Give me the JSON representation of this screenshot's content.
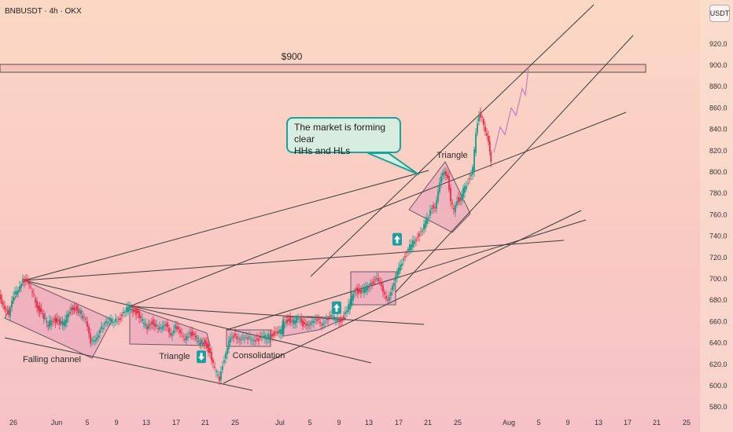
{
  "header": {
    "symbol_line": "BNBUSDT · 4h · OKX"
  },
  "currency": "USDT",
  "callout": {
    "line1": "The market is forming clear",
    "line2": "HHs and HLs"
  },
  "chart_data": {
    "type": "candlestick",
    "title": "BNBUSDT · 4h · OKX",
    "y_axis": {
      "ticks": [
        580,
        600,
        620,
        640,
        660,
        680,
        700,
        720,
        740,
        760,
        780,
        800,
        820,
        840,
        860,
        880,
        900,
        920
      ],
      "tick_labels": [
        "580.0",
        "600.0",
        "620.0",
        "640.0",
        "660.0",
        "680.0",
        "700.0",
        "720.0",
        "740.0",
        "760.0",
        "780.0",
        "800.0",
        "820.0",
        "840.0",
        "860.0",
        "880.0",
        "900.0",
        "920.0"
      ],
      "range": [
        573,
        943
      ],
      "position": "right"
    },
    "x_axis": {
      "tick_labels": [
        "26",
        "Jun",
        "5",
        "9",
        "13",
        "17",
        "21",
        "25",
        "Jul",
        "5",
        "9",
        "13",
        "17",
        "21",
        "25",
        "Aug",
        "5",
        "9",
        "13",
        "17",
        "21",
        "25"
      ],
      "bold_labels": [
        "Jun",
        "Jul",
        "Aug"
      ]
    },
    "price_series": [
      [
        0,
        683
      ],
      [
        5,
        677
      ],
      [
        12,
        665
      ],
      [
        18,
        683
      ],
      [
        24,
        692
      ],
      [
        30,
        700
      ],
      [
        36,
        695
      ],
      [
        42,
        688
      ],
      [
        48,
        675
      ],
      [
        55,
        665
      ],
      [
        62,
        657
      ],
      [
        68,
        662
      ],
      [
        75,
        660
      ],
      [
        82,
        658
      ],
      [
        90,
        670
      ],
      [
        97,
        673
      ],
      [
        104,
        668
      ],
      [
        110,
        660
      ],
      [
        116,
        640
      ],
      [
        122,
        645
      ],
      [
        130,
        653
      ],
      [
        138,
        660
      ],
      [
        146,
        662
      ],
      [
        152,
        663
      ],
      [
        158,
        667
      ],
      [
        164,
        673
      ],
      [
        170,
        671
      ],
      [
        176,
        668
      ],
      [
        182,
        660
      ],
      [
        188,
        653
      ],
      [
        194,
        660
      ],
      [
        200,
        656
      ],
      [
        206,
        652
      ],
      [
        212,
        657
      ],
      [
        218,
        649
      ],
      [
        224,
        655
      ],
      [
        230,
        648
      ],
      [
        236,
        645
      ],
      [
        242,
        650
      ],
      [
        248,
        645
      ],
      [
        255,
        641
      ],
      [
        262,
        640
      ],
      [
        268,
        630
      ],
      [
        274,
        615
      ],
      [
        280,
        605
      ],
      [
        284,
        620
      ],
      [
        288,
        632
      ],
      [
        292,
        640
      ],
      [
        298,
        647
      ],
      [
        304,
        646
      ],
      [
        310,
        643
      ],
      [
        316,
        643
      ],
      [
        322,
        645
      ],
      [
        328,
        643
      ],
      [
        334,
        644
      ],
      [
        340,
        646
      ],
      [
        346,
        648
      ],
      [
        352,
        649
      ],
      [
        358,
        651
      ],
      [
        362,
        658
      ],
      [
        368,
        662
      ],
      [
        374,
        660
      ],
      [
        380,
        662
      ],
      [
        386,
        658
      ],
      [
        392,
        659
      ],
      [
        398,
        658
      ],
      [
        404,
        661
      ],
      [
        410,
        659
      ],
      [
        416,
        662
      ],
      [
        422,
        664
      ],
      [
        428,
        663
      ],
      [
        434,
        661
      ],
      [
        440,
        667
      ],
      [
        446,
        677
      ],
      [
        452,
        690
      ],
      [
        458,
        688
      ],
      [
        464,
        690
      ],
      [
        470,
        692
      ],
      [
        476,
        698
      ],
      [
        480,
        703
      ],
      [
        484,
        696
      ],
      [
        488,
        686
      ],
      [
        494,
        682
      ],
      [
        500,
        692
      ],
      [
        504,
        700
      ],
      [
        508,
        710
      ],
      [
        514,
        720
      ],
      [
        518,
        725
      ],
      [
        524,
        732
      ],
      [
        530,
        738
      ],
      [
        536,
        744
      ],
      [
        540,
        750
      ],
      [
        546,
        758
      ],
      [
        550,
        768
      ],
      [
        554,
        768
      ],
      [
        558,
        780
      ],
      [
        562,
        795
      ],
      [
        566,
        803
      ],
      [
        570,
        795
      ],
      [
        574,
        770
      ],
      [
        578,
        765
      ],
      [
        582,
        775
      ],
      [
        586,
        772
      ],
      [
        590,
        783
      ],
      [
        594,
        788
      ],
      [
        598,
        795
      ],
      [
        602,
        803
      ],
      [
        606,
        835
      ],
      [
        610,
        855
      ],
      [
        614,
        852
      ],
      [
        618,
        835
      ],
      [
        622,
        828
      ],
      [
        625,
        812
      ]
    ],
    "resistance_level": {
      "value": 900,
      "label": "$900"
    },
    "projection": [
      [
        628,
        818
      ],
      [
        636,
        842
      ],
      [
        642,
        835
      ],
      [
        650,
        860
      ],
      [
        656,
        853
      ],
      [
        664,
        878
      ],
      [
        668,
        872
      ],
      [
        672,
        898
      ]
    ],
    "patterns": [
      "Falling channel",
      "Triangle",
      "Consolidation",
      "Triangle"
    ],
    "signals": [
      {
        "direction": "down",
        "x": 256,
        "price": 627
      },
      {
        "direction": "up",
        "x": 428,
        "price": 673
      },
      {
        "direction": "up",
        "x": 505,
        "price": 737
      }
    ],
    "grid": false
  }
}
